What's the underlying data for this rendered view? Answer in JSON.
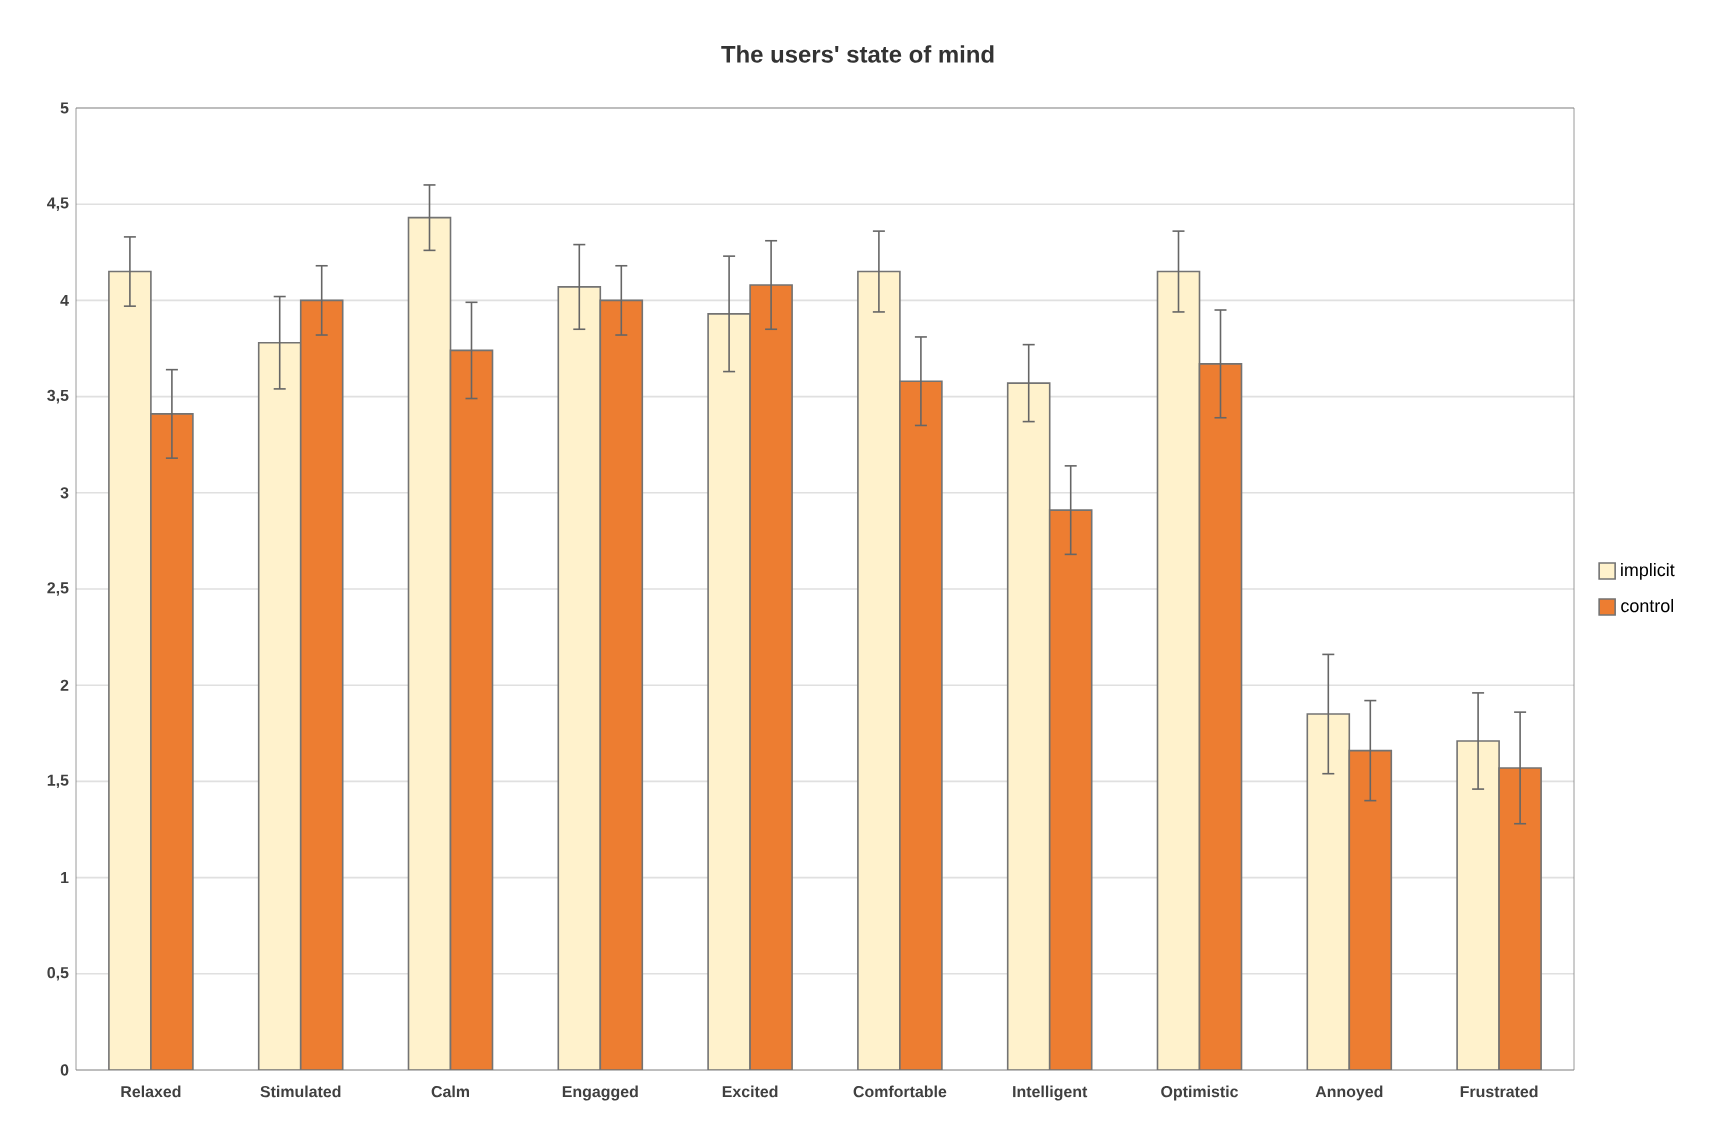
{
  "chart_data": {
    "type": "bar",
    "title": "The users' state of mind",
    "categories": [
      "Relaxed",
      "Stimulated",
      "Calm",
      "Engagged",
      "Excited",
      "Comfortable",
      "Intelligent",
      "Optimistic",
      "Annoyed",
      "Frustrated"
    ],
    "series": [
      {
        "name": "implicit",
        "color": "#fff2cc",
        "values": [
          4.15,
          3.78,
          4.43,
          4.07,
          3.93,
          4.15,
          3.57,
          4.15,
          1.85,
          1.71
        ],
        "errors": [
          0.18,
          0.24,
          0.17,
          0.22,
          0.3,
          0.21,
          0.2,
          0.21,
          0.31,
          0.25
        ]
      },
      {
        "name": "control",
        "color": "#ed7d31",
        "values": [
          3.41,
          4.0,
          3.74,
          4.0,
          4.08,
          3.58,
          2.91,
          3.67,
          1.66,
          1.57
        ],
        "errors": [
          0.23,
          0.18,
          0.25,
          0.18,
          0.23,
          0.23,
          0.23,
          0.28,
          0.26,
          0.29
        ]
      }
    ],
    "ylim": [
      0,
      5
    ],
    "yticks": [
      0,
      {
        "value": 0.5,
        "label": "0,5"
      },
      1,
      {
        "value": 1.5,
        "label": "1,5"
      },
      2,
      {
        "value": 2.5,
        "label": "2,5"
      },
      3,
      {
        "value": 3.5,
        "label": "3,5"
      },
      4,
      {
        "value": 4.5,
        "label": "4,5"
      },
      5
    ],
    "grid": "y",
    "legend": "right"
  }
}
